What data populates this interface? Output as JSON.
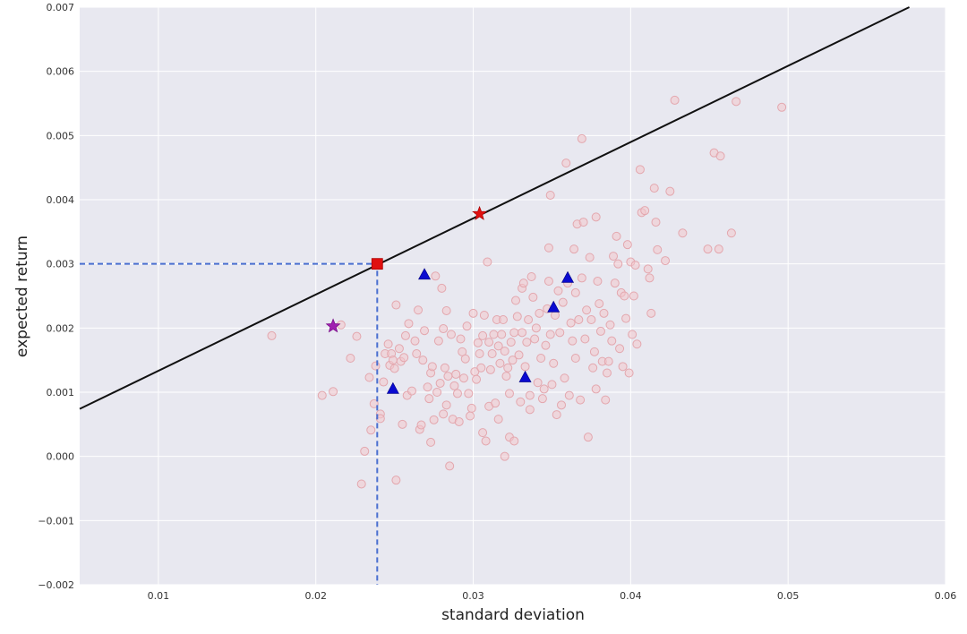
{
  "chart_data": {
    "type": "scatter",
    "title": "",
    "xlabel": "standard deviation",
    "ylabel": "expected return",
    "xlim": [
      0.005,
      0.06
    ],
    "ylim": [
      -0.002,
      0.007
    ],
    "xticks": [
      0.01,
      0.02,
      0.03,
      0.04,
      0.05,
      0.06
    ],
    "xtick_labels": [
      "0.01",
      "0.02",
      "0.03",
      "0.04",
      "0.05",
      "0.06"
    ],
    "yticks": [
      -0.002,
      -0.001,
      0.0,
      0.001,
      0.002,
      0.003,
      0.004,
      0.005,
      0.006,
      0.007
    ],
    "ytick_labels": [
      "−0.002",
      "−0.001",
      "0.000",
      "0.001",
      "0.002",
      "0.003",
      "0.004",
      "0.005",
      "0.006",
      "0.007"
    ],
    "grid": true,
    "colors": {
      "background": "#e8e8f0",
      "grid": "#ffffff",
      "scatter_edge": "#e3a7ae",
      "scatter_fill": "#f2c7cc",
      "line": "#111111",
      "dashed": "#4a6fd0",
      "square": "#e01010",
      "red_star": "#e01010",
      "purple_star": "#a020b0",
      "triangles": "#0a0ad0"
    },
    "series": [
      {
        "kind": "scatter-circles",
        "points": [
          [
            0.0172,
            0.00188
          ],
          [
            0.0204,
            0.00095
          ],
          [
            0.0211,
            0.00101
          ],
          [
            0.0216,
            0.00205
          ],
          [
            0.0222,
            0.00153
          ],
          [
            0.0226,
            0.00187
          ],
          [
            0.0229,
            -0.00043
          ],
          [
            0.0231,
            8e-05
          ],
          [
            0.0234,
            0.00123
          ],
          [
            0.0235,
            0.00041
          ],
          [
            0.0237,
            0.00082
          ],
          [
            0.0238,
            0.00141
          ],
          [
            0.0241,
            0.00066
          ],
          [
            0.0241,
            0.00059
          ],
          [
            0.0243,
            0.00116
          ],
          [
            0.0244,
            0.0016
          ],
          [
            0.0246,
            0.00175
          ],
          [
            0.0247,
            0.00142
          ],
          [
            0.0248,
            0.0016
          ],
          [
            0.0249,
            0.0015
          ],
          [
            0.025,
            0.00137
          ],
          [
            0.0251,
            0.00236
          ],
          [
            0.0251,
            -0.00037
          ],
          [
            0.0253,
            0.00168
          ],
          [
            0.0254,
            0.00148
          ],
          [
            0.0255,
            0.0005
          ],
          [
            0.0256,
            0.00154
          ],
          [
            0.0257,
            0.00188
          ],
          [
            0.0258,
            0.00095
          ],
          [
            0.0259,
            0.00207
          ],
          [
            0.0261,
            0.00102
          ],
          [
            0.0263,
            0.0018
          ],
          [
            0.0264,
            0.0016
          ],
          [
            0.0265,
            0.00228
          ],
          [
            0.0266,
            0.00042
          ],
          [
            0.0267,
            0.00049
          ],
          [
            0.0268,
            0.0015
          ],
          [
            0.0269,
            0.00196
          ],
          [
            0.0271,
            0.00108
          ],
          [
            0.0272,
            0.0009
          ],
          [
            0.0273,
            0.0013
          ],
          [
            0.0273,
            0.00022
          ],
          [
            0.0274,
            0.0014
          ],
          [
            0.0275,
            0.00057
          ],
          [
            0.0276,
            0.00281
          ],
          [
            0.0277,
            0.001
          ],
          [
            0.0278,
            0.0018
          ],
          [
            0.0279,
            0.00114
          ],
          [
            0.028,
            0.00262
          ],
          [
            0.0281,
            0.00199
          ],
          [
            0.0281,
            0.00066
          ],
          [
            0.0282,
            0.00138
          ],
          [
            0.0283,
            0.00227
          ],
          [
            0.0283,
            0.0008
          ],
          [
            0.0284,
            0.00125
          ],
          [
            0.0285,
            -0.00015
          ],
          [
            0.0286,
            0.0019
          ],
          [
            0.0287,
            0.00058
          ],
          [
            0.0288,
            0.0011
          ],
          [
            0.0289,
            0.00128
          ],
          [
            0.029,
            0.00098
          ],
          [
            0.0291,
            0.00054
          ],
          [
            0.0292,
            0.00183
          ],
          [
            0.0293,
            0.00163
          ],
          [
            0.0294,
            0.00122
          ],
          [
            0.0295,
            0.00152
          ],
          [
            0.0296,
            0.00203
          ],
          [
            0.0297,
            0.00098
          ],
          [
            0.0298,
            0.00063
          ],
          [
            0.0299,
            0.00075
          ],
          [
            0.03,
            0.00223
          ],
          [
            0.0301,
            0.00132
          ],
          [
            0.0302,
            0.0012
          ],
          [
            0.0303,
            0.00177
          ],
          [
            0.0304,
            0.0016
          ],
          [
            0.0305,
            0.00138
          ],
          [
            0.0306,
            0.00037
          ],
          [
            0.0306,
            0.00188
          ],
          [
            0.0307,
            0.0022
          ],
          [
            0.0308,
            0.00024
          ],
          [
            0.0309,
            0.00303
          ],
          [
            0.031,
            0.00078
          ],
          [
            0.031,
            0.00178
          ],
          [
            0.0311,
            0.00135
          ],
          [
            0.0312,
            0.0016
          ],
          [
            0.0313,
            0.0019
          ],
          [
            0.0314,
            0.00083
          ],
          [
            0.0315,
            0.00213
          ],
          [
            0.0316,
            0.00172
          ],
          [
            0.0316,
            0.00058
          ],
          [
            0.0317,
            0.00145
          ],
          [
            0.0318,
            0.0019
          ],
          [
            0.0319,
            0.00213
          ],
          [
            0.032,
            0.0
          ],
          [
            0.032,
            0.00164
          ],
          [
            0.0321,
            0.00125
          ],
          [
            0.0322,
            0.00138
          ],
          [
            0.0323,
            0.00098
          ],
          [
            0.0323,
            0.0003
          ],
          [
            0.0324,
            0.00178
          ],
          [
            0.0325,
            0.0015
          ],
          [
            0.0326,
            0.00193
          ],
          [
            0.0326,
            0.00024
          ],
          [
            0.0327,
            0.00243
          ],
          [
            0.0328,
            0.00218
          ],
          [
            0.0329,
            0.00158
          ],
          [
            0.033,
            0.00085
          ],
          [
            0.0331,
            0.00193
          ],
          [
            0.0331,
            0.00262
          ],
          [
            0.0332,
            0.0027
          ],
          [
            0.0333,
            0.0014
          ],
          [
            0.0334,
            0.00178
          ],
          [
            0.0335,
            0.00213
          ],
          [
            0.0336,
            0.00095
          ],
          [
            0.0336,
            0.00073
          ],
          [
            0.0337,
            0.0028
          ],
          [
            0.0338,
            0.00248
          ],
          [
            0.0339,
            0.00183
          ],
          [
            0.034,
            0.002
          ],
          [
            0.0341,
            0.00115
          ],
          [
            0.0342,
            0.00223
          ],
          [
            0.0343,
            0.00153
          ],
          [
            0.0344,
            0.0009
          ],
          [
            0.0345,
            0.00105
          ],
          [
            0.0346,
            0.00173
          ],
          [
            0.0347,
            0.0023
          ],
          [
            0.0348,
            0.00273
          ],
          [
            0.0348,
            0.00325
          ],
          [
            0.0349,
            0.0019
          ],
          [
            0.0349,
            0.00407
          ],
          [
            0.035,
            0.00112
          ],
          [
            0.0351,
            0.00145
          ],
          [
            0.0352,
            0.0022
          ],
          [
            0.0353,
            0.00065
          ],
          [
            0.0354,
            0.00258
          ],
          [
            0.0355,
            0.00193
          ],
          [
            0.0356,
            0.0008
          ],
          [
            0.0357,
            0.0024
          ],
          [
            0.0358,
            0.00122
          ],
          [
            0.0359,
            0.00457
          ],
          [
            0.036,
            0.0027
          ],
          [
            0.0361,
            0.00095
          ],
          [
            0.0362,
            0.00208
          ],
          [
            0.0363,
            0.0018
          ],
          [
            0.0364,
            0.00323
          ],
          [
            0.0365,
            0.00153
          ],
          [
            0.0365,
            0.00255
          ],
          [
            0.0366,
            0.00362
          ],
          [
            0.0367,
            0.00213
          ],
          [
            0.0368,
            0.00088
          ],
          [
            0.0369,
            0.00278
          ],
          [
            0.0369,
            0.00495
          ],
          [
            0.037,
            0.00365
          ],
          [
            0.0371,
            0.00183
          ],
          [
            0.0372,
            0.00228
          ],
          [
            0.0373,
            0.0003
          ],
          [
            0.0374,
            0.0031
          ],
          [
            0.0375,
            0.00213
          ],
          [
            0.0376,
            0.00138
          ],
          [
            0.0377,
            0.00163
          ],
          [
            0.0378,
            0.00373
          ],
          [
            0.0378,
            0.00105
          ],
          [
            0.0379,
            0.00273
          ],
          [
            0.038,
            0.00238
          ],
          [
            0.0381,
            0.00195
          ],
          [
            0.0382,
            0.00148
          ],
          [
            0.0383,
            0.00223
          ],
          [
            0.0384,
            0.00088
          ],
          [
            0.0385,
            0.0013
          ],
          [
            0.0386,
            0.00148
          ],
          [
            0.0387,
            0.00205
          ],
          [
            0.0388,
            0.0018
          ],
          [
            0.0389,
            0.00312
          ],
          [
            0.039,
            0.0027
          ],
          [
            0.0391,
            0.00343
          ],
          [
            0.0392,
            0.003
          ],
          [
            0.0393,
            0.00168
          ],
          [
            0.0394,
            0.00255
          ],
          [
            0.0395,
            0.0014
          ],
          [
            0.0396,
            0.0025
          ],
          [
            0.0397,
            0.00215
          ],
          [
            0.0398,
            0.0033
          ],
          [
            0.0399,
            0.0013
          ],
          [
            0.04,
            0.00303
          ],
          [
            0.0401,
            0.0019
          ],
          [
            0.0402,
            0.0025
          ],
          [
            0.0403,
            0.00298
          ],
          [
            0.0404,
            0.00175
          ],
          [
            0.0406,
            0.00447
          ],
          [
            0.0407,
            0.0038
          ],
          [
            0.0409,
            0.00383
          ],
          [
            0.0411,
            0.00292
          ],
          [
            0.0412,
            0.00278
          ],
          [
            0.0413,
            0.00223
          ],
          [
            0.0415,
            0.00418
          ],
          [
            0.0416,
            0.00365
          ],
          [
            0.0417,
            0.00322
          ],
          [
            0.0422,
            0.00305
          ],
          [
            0.0425,
            0.00413
          ],
          [
            0.0428,
            0.00555
          ],
          [
            0.0433,
            0.00348
          ],
          [
            0.0449,
            0.00323
          ],
          [
            0.0453,
            0.00473
          ],
          [
            0.0456,
            0.00323
          ],
          [
            0.0457,
            0.00468
          ],
          [
            0.0464,
            0.00348
          ],
          [
            0.0467,
            0.00553
          ],
          [
            0.0496,
            0.00544
          ]
        ]
      },
      {
        "kind": "line",
        "points": [
          [
            0.005,
            0.00074
          ],
          [
            0.0577,
            0.007
          ]
        ]
      },
      {
        "kind": "dashed",
        "points": [
          [
            0.005,
            0.003
          ],
          [
            0.0239,
            0.003
          ],
          [
            0.0239,
            -0.002
          ]
        ]
      },
      {
        "kind": "square",
        "points": [
          [
            0.0239,
            0.003
          ]
        ]
      },
      {
        "kind": "red-star",
        "points": [
          [
            0.0304,
            0.00378
          ]
        ]
      },
      {
        "kind": "purple-star",
        "points": [
          [
            0.0211,
            0.00203
          ]
        ]
      },
      {
        "kind": "triangles",
        "points": [
          [
            0.0249,
            0.00105
          ],
          [
            0.0269,
            0.00283
          ],
          [
            0.0333,
            0.00123
          ],
          [
            0.0351,
            0.00232
          ],
          [
            0.036,
            0.00278
          ]
        ]
      }
    ]
  }
}
